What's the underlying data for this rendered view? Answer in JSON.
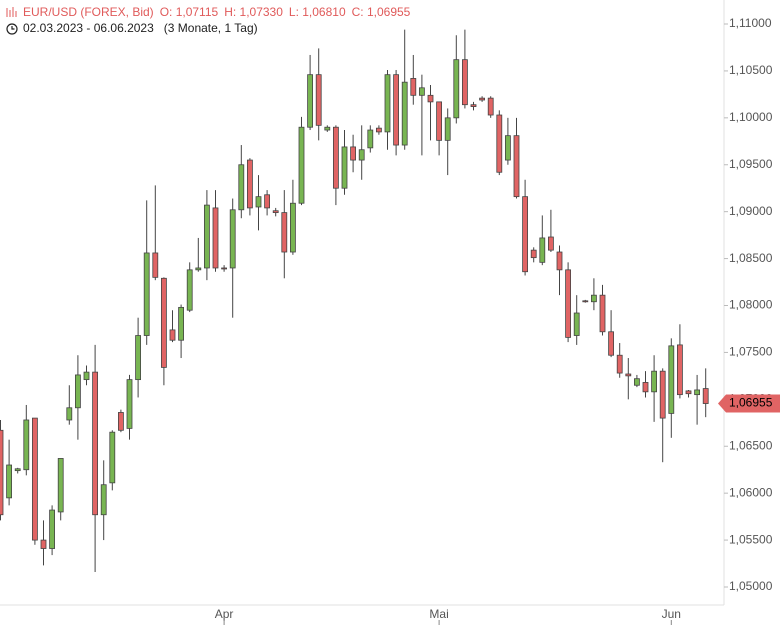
{
  "chart_data": {
    "type": "candlestick",
    "title": "EUR/USD (FOREX, Bid)",
    "ohlc_labels": [
      "O: 1,07115",
      "H: 1,07330",
      "L: 1,06810",
      "C: 1,06955"
    ],
    "period": "02.03.2023 - 06.06.2023",
    "span": "(3 Monate, 1 Tag)",
    "up_color": "#78b552",
    "down_color": "#e06464",
    "categories": [
      null,
      null,
      null,
      null,
      null,
      null,
      null,
      null,
      null,
      null,
      null,
      null,
      null,
      null,
      null,
      null,
      null,
      null,
      null,
      null,
      null,
      null,
      null,
      null,
      null,
      null,
      "Apr",
      null,
      null,
      null,
      null,
      null,
      null,
      null,
      null,
      null,
      null,
      null,
      null,
      null,
      null,
      null,
      null,
      null,
      null,
      null,
      null,
      null,
      null,
      null,
      null,
      "Mai",
      null,
      null,
      null,
      null,
      null,
      null,
      null,
      null,
      null,
      null,
      null,
      null,
      null,
      null,
      null,
      null,
      null,
      null,
      null,
      null,
      null,
      null,
      null,
      null,
      null,
      null,
      "Jun",
      null,
      null,
      null,
      null
    ],
    "open": [
      1.0667,
      1.0595,
      1.0624,
      1.0625,
      1.068,
      1.055,
      1.0541,
      1.058,
      1.0678,
      1.0691,
      1.0721,
      1.0729,
      1.0577,
      1.0611,
      1.0686,
      1.0669,
      1.0721,
      1.0768,
      1.0856,
      1.0829,
      1.0774,
      1.0763,
      1.0795,
      1.0838,
      1.084,
      1.0904,
      1.084,
      1.084,
      1.0902,
      1.0955,
      1.0905,
      1.0918,
      1.0901,
      1.0899,
      1.0857,
      1.0909,
      1.099,
      1.1046,
      1.0987,
      1.099,
      1.0925,
      1.0969,
      1.0955,
      1.0968,
      1.0989,
      1.0985,
      1.1046,
      1.0971,
      1.1042,
      1.1024,
      1.1024,
      1.1017,
      1.0976,
      1.1,
      1.1062,
      1.1014,
      1.1021,
      1.1021,
      1.1003,
      1.0955,
      1.0981,
      1.0916,
      1.0859,
      1.0846,
      1.0873,
      1.0857,
      1.0838,
      1.0768,
      1.0805,
      1.0804,
      1.0811,
      1.0772,
      1.0747,
      1.0727,
      1.0715,
      1.0718,
      1.0708,
      1.073,
      1.0685,
      1.0758,
      1.0709,
      1.0705,
      1.07115
    ],
    "high": [
      1.0678,
      1.0657,
      1.0627,
      1.0694,
      1.068,
      1.0571,
      1.0587,
      1.0637,
      1.0715,
      1.0747,
      1.0736,
      1.0758,
      1.0635,
      1.0667,
      1.0689,
      1.0726,
      1.0787,
      1.0912,
      1.0928,
      1.083,
      1.0795,
      1.0801,
      1.0846,
      1.0872,
      1.0923,
      1.0923,
      1.0843,
      1.0914,
      1.0971,
      1.0957,
      1.0939,
      1.0923,
      1.0904,
      1.0923,
      1.0934,
      1.1001,
      1.1067,
      1.1074,
      1.0992,
      1.0992,
      1.0987,
      1.0982,
      1.0992,
      1.0992,
      1.0992,
      1.1051,
      1.1051,
      1.1094,
      1.1067,
      1.1046,
      1.1035,
      1.1017,
      1.101,
      1.1088,
      1.1094,
      1.1017,
      1.1023,
      1.1023,
      1.1008,
      1.1,
      1.1,
      1.0934,
      1.0862,
      1.0896,
      1.0902,
      1.0864,
      1.0846,
      1.0811,
      1.0806,
      1.0829,
      1.0822,
      1.0795,
      1.076,
      1.0744,
      1.0726,
      1.073,
      1.0747,
      1.0733,
      1.0765,
      1.078,
      1.071,
      1.0726,
      1.0733
    ],
    "low": [
      1.0571,
      1.0587,
      1.0621,
      1.0619,
      1.0545,
      1.0523,
      1.0534,
      1.0571,
      1.0673,
      1.0657,
      1.0715,
      1.0516,
      1.055,
      1.0603,
      1.0665,
      1.0657,
      1.0702,
      1.0758,
      1.0827,
      1.0715,
      1.0761,
      1.0744,
      1.0793,
      1.0836,
      1.0827,
      1.0836,
      1.0836,
      1.0787,
      1.0893,
      1.0896,
      1.088,
      1.0896,
      1.0895,
      1.0829,
      1.0854,
      1.0907,
      1.0987,
      1.0976,
      1.0985,
      1.0907,
      1.0918,
      1.0942,
      1.0934,
      1.0963,
      1.0982,
      1.0966,
      1.096,
      1.0966,
      1.1014,
      1.096,
      1.0976,
      1.096,
      1.0939,
      1.0994,
      1.101,
      1.1008,
      1.1017,
      1.1,
      1.0939,
      1.095,
      1.0914,
      1.0832,
      1.0846,
      1.0843,
      1.0857,
      1.0811,
      1.0761,
      1.0758,
      1.0803,
      1.0795,
      1.0768,
      1.0745,
      1.0723,
      1.07,
      1.0713,
      1.0702,
      1.0676,
      1.0633,
      1.0659,
      1.0701,
      1.0702,
      1.0673,
      1.0681
    ],
    "close": [
      1.0577,
      1.063,
      1.0626,
      1.0678,
      1.055,
      1.0541,
      1.0582,
      1.0637,
      1.0691,
      1.0726,
      1.0729,
      1.0577,
      1.0609,
      1.0665,
      1.0667,
      1.0721,
      1.0768,
      1.0856,
      1.083,
      1.0734,
      1.0763,
      1.0798,
      1.0838,
      1.084,
      1.0907,
      1.084,
      1.0839,
      1.0902,
      1.095,
      1.0904,
      1.0916,
      1.0904,
      1.0899,
      1.0857,
      1.0909,
      1.099,
      1.1046,
      1.0992,
      1.099,
      1.0925,
      1.0969,
      1.0955,
      1.0966,
      1.0987,
      1.0985,
      1.1046,
      1.0971,
      1.1038,
      1.1024,
      1.1032,
      1.1017,
      1.0976,
      1.1,
      1.1062,
      1.1014,
      1.1012,
      1.1019,
      1.1003,
      1.0942,
      1.0981,
      1.0916,
      1.0836,
      1.0851,
      1.0872,
      1.0859,
      1.0838,
      1.0766,
      1.0792,
      1.0804,
      1.0811,
      1.0772,
      1.0747,
      1.0728,
      1.0725,
      1.0722,
      1.0708,
      1.073,
      1.068,
      1.0757,
      1.0705,
      1.0706,
      1.071,
      1.06955
    ],
    "last_price": {
      "value": 1.06955,
      "label": "1,06955"
    },
    "ylim": [
      1.05,
      1.11
    ],
    "yticks": [
      {
        "value": 1.05,
        "label": "1,05000"
      },
      {
        "value": 1.055,
        "label": "1,05500"
      },
      {
        "value": 1.06,
        "label": "1,06000"
      },
      {
        "value": 1.065,
        "label": "1,06500"
      },
      {
        "value": 1.07,
        "label": "1,07000"
      },
      {
        "value": 1.075,
        "label": "1,07500"
      },
      {
        "value": 1.08,
        "label": "1,08000"
      },
      {
        "value": 1.085,
        "label": "1,08500"
      },
      {
        "value": 1.09,
        "label": "1,09000"
      },
      {
        "value": 1.095,
        "label": "1,09500"
      },
      {
        "value": 1.1,
        "label": "1,10000"
      },
      {
        "value": 1.105,
        "label": "1,10500"
      },
      {
        "value": 1.11,
        "label": "1,11000"
      }
    ]
  }
}
